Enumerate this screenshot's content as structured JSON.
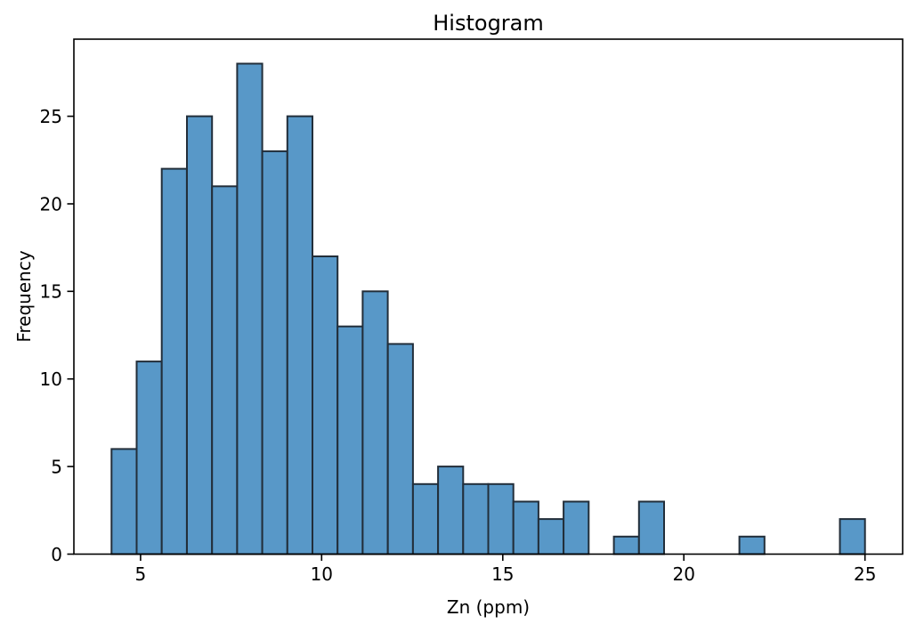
{
  "figure": {
    "title": "Histogram",
    "xlabel": "Zn (ppm)",
    "ylabel": "Frequency"
  },
  "chart_data": {
    "type": "bar",
    "subtype": "histogram",
    "title": "Histogram",
    "xlabel": "Zn (ppm)",
    "ylabel": "Frequency",
    "bin_start": 4.2,
    "bin_end": 25.0,
    "bin_count": 30,
    "bin_width": 0.6933,
    "counts": [
      6,
      11,
      22,
      25,
      21,
      28,
      23,
      25,
      17,
      13,
      15,
      12,
      4,
      5,
      4,
      4,
      3,
      2,
      3,
      0,
      1,
      3,
      0,
      0,
      0,
      1,
      0,
      0,
      0,
      2
    ],
    "total_samples": 250,
    "xticks": [
      5,
      10,
      15,
      20,
      25
    ],
    "yticks": [
      0,
      5,
      10,
      15,
      20,
      25
    ],
    "xlim": [
      3.16,
      26.04
    ],
    "ylim": [
      0,
      29.4
    ],
    "grid": false,
    "legend": null,
    "bar_fill": "#5898c8",
    "bar_edge": "#222e3a",
    "axis_color": "#000000",
    "text_color": "#000000"
  }
}
